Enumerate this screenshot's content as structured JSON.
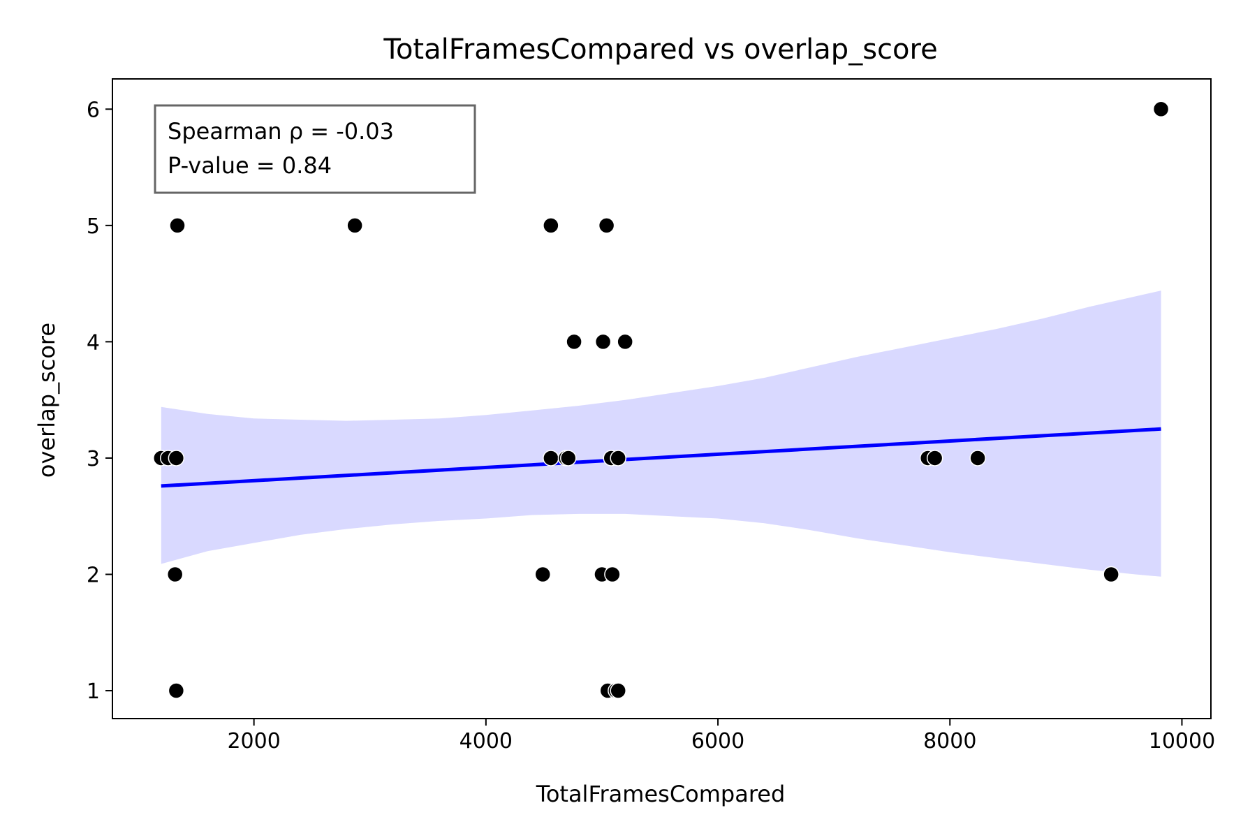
{
  "chart_data": {
    "type": "scatter",
    "title": "TotalFramesCompared vs overlap_score",
    "xlabel": "TotalFramesCompared",
    "ylabel": "overlap_score",
    "xlim": [
      780,
      10250
    ],
    "ylim": [
      0.76,
      6.26
    ],
    "xticks": [
      2000,
      4000,
      6000,
      8000,
      10000
    ],
    "yticks": [
      1,
      2,
      3,
      4,
      5,
      6
    ],
    "grid": false,
    "annotation": {
      "lines": [
        "Spearman ρ = -0.03",
        "P-value = 0.84"
      ],
      "placement": "top-left"
    },
    "points": {
      "color": "#000000",
      "x": [
        1340,
        2870,
        4560,
        5040,
        4760,
        5010,
        5200,
        1200,
        1260,
        1330,
        4560,
        4690,
        4710,
        5080,
        5140,
        7810,
        7870,
        8240,
        1320,
        4490,
        5000,
        5090,
        9390,
        1330,
        5050,
        5120,
        5140,
        9820
      ],
      "y": [
        5,
        5,
        5,
        5,
        4,
        4,
        4,
        3,
        3,
        3,
        3,
        3,
        3,
        3,
        3,
        3,
        3,
        3,
        2,
        2,
        2,
        2,
        2,
        1,
        1,
        1,
        1,
        6
      ]
    },
    "fit_line": {
      "color": "#0000ff",
      "x": [
        1200,
        9820
      ],
      "y": [
        2.76,
        3.25
      ]
    },
    "confidence_band": {
      "color": "#d9d9ff",
      "x": [
        1200,
        1600,
        2000,
        2400,
        2800,
        3200,
        3600,
        4000,
        4400,
        4800,
        5200,
        5600,
        6000,
        6400,
        6800,
        7200,
        7600,
        8000,
        8400,
        8800,
        9200,
        9600,
        9820
      ],
      "upper": [
        3.44,
        3.38,
        3.34,
        3.33,
        3.32,
        3.33,
        3.34,
        3.37,
        3.41,
        3.45,
        3.5,
        3.56,
        3.62,
        3.69,
        3.78,
        3.87,
        3.95,
        4.03,
        4.11,
        4.2,
        4.3,
        4.39,
        4.44
      ],
      "lower": [
        2.09,
        2.2,
        2.27,
        2.34,
        2.39,
        2.43,
        2.46,
        2.48,
        2.51,
        2.52,
        2.52,
        2.5,
        2.48,
        2.44,
        2.38,
        2.31,
        2.25,
        2.19,
        2.14,
        2.09,
        2.04,
        2.0,
        1.98
      ]
    }
  }
}
